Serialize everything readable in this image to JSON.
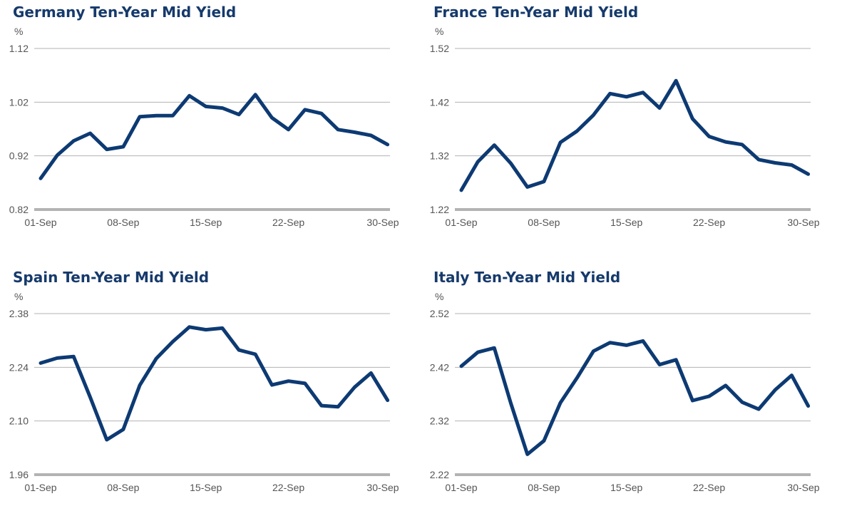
{
  "chart_data": [
    {
      "type": "line",
      "title": "Germany Ten-Year Mid Yield",
      "unit": "%",
      "ylim": [
        0.82,
        1.12
      ],
      "yticks": [
        "1.12",
        "1.02",
        "0.92",
        "0.82"
      ],
      "xlim": [
        1,
        30
      ],
      "xticks": [
        {
          "label": "01-Sep",
          "day": 1
        },
        {
          "label": "08-Sep",
          "day": 8
        },
        {
          "label": "15-Sep",
          "day": 15
        },
        {
          "label": "22-Sep",
          "day": 22
        },
        {
          "label": "30-Sep",
          "day": 30
        }
      ],
      "grid": true,
      "colors": {
        "line": "#0d3a73",
        "grid": "#b3b3b3",
        "axis": "#b3b3b3"
      },
      "series": [
        {
          "x": [
            1,
            2.4,
            3.8,
            5.2,
            6.6,
            8,
            9.4,
            10.8,
            12.2,
            13.6,
            15,
            16.4,
            17.8,
            19.2,
            20.6,
            22,
            23.4,
            24.8,
            26.2,
            27.6,
            29,
            30.4
          ],
          "values": [
            0.878,
            0.921,
            0.948,
            0.962,
            0.932,
            0.937,
            0.993,
            0.995,
            0.995,
            1.032,
            1.012,
            1.009,
            0.997,
            1.034,
            0.991,
            0.969,
            1.006,
            0.999,
            0.969,
            0.964,
            0.958,
            0.941
          ]
        }
      ]
    },
    {
      "type": "line",
      "title": "France Ten-Year Mid Yield",
      "unit": "%",
      "ylim": [
        1.22,
        1.52
      ],
      "yticks": [
        "1.52",
        "1.42",
        "1.32",
        "1.22"
      ],
      "xlim": [
        1,
        30
      ],
      "xticks": [
        {
          "label": "01-Sep",
          "day": 1
        },
        {
          "label": "08-Sep",
          "day": 8
        },
        {
          "label": "15-Sep",
          "day": 15
        },
        {
          "label": "22-Sep",
          "day": 22
        },
        {
          "label": "30-Sep",
          "day": 30
        }
      ],
      "grid": true,
      "colors": {
        "line": "#0d3a73",
        "grid": "#b3b3b3",
        "axis": "#b3b3b3"
      },
      "series": [
        {
          "x": [
            1,
            2.4,
            3.8,
            5.2,
            6.6,
            8,
            9.4,
            10.8,
            12.2,
            13.6,
            15,
            16.4,
            17.8,
            19.2,
            20.6,
            22,
            23.4,
            24.8,
            26.2,
            27.6,
            29,
            30.4
          ],
          "values": [
            1.256,
            1.309,
            1.34,
            1.306,
            1.262,
            1.272,
            1.345,
            1.366,
            1.396,
            1.436,
            1.43,
            1.438,
            1.409,
            1.46,
            1.389,
            1.356,
            1.346,
            1.341,
            1.313,
            1.307,
            1.303,
            1.286
          ]
        }
      ]
    },
    {
      "type": "line",
      "title": "Spain Ten-Year Mid Yield",
      "unit": "%",
      "ylim": [
        1.96,
        2.38
      ],
      "yticks": [
        "2.38",
        "2.24",
        "2.10",
        "1.96"
      ],
      "xlim": [
        1,
        30
      ],
      "xticks": [
        {
          "label": "01-Sep",
          "day": 1
        },
        {
          "label": "08-Sep",
          "day": 8
        },
        {
          "label": "15-Sep",
          "day": 15
        },
        {
          "label": "22-Sep",
          "day": 22
        },
        {
          "label": "30-Sep",
          "day": 30
        }
      ],
      "grid": true,
      "colors": {
        "line": "#0d3a73",
        "grid": "#b3b3b3",
        "axis": "#b3b3b3"
      },
      "series": [
        {
          "x": [
            1,
            2.4,
            3.8,
            5.2,
            6.6,
            8,
            9.4,
            10.8,
            12.2,
            13.6,
            15,
            16.4,
            17.8,
            19.2,
            20.6,
            22,
            23.4,
            24.8,
            26.2,
            27.6,
            29,
            30.4
          ],
          "values": [
            2.251,
            2.264,
            2.268,
            2.162,
            2.051,
            2.078,
            2.193,
            2.263,
            2.307,
            2.345,
            2.338,
            2.342,
            2.285,
            2.274,
            2.194,
            2.204,
            2.198,
            2.14,
            2.137,
            2.188,
            2.225,
            2.154
          ]
        }
      ]
    },
    {
      "type": "line",
      "title": "Italy Ten-Year Mid Yield",
      "unit": "%",
      "ylim": [
        2.22,
        2.52
      ],
      "yticks": [
        "2.52",
        "2.42",
        "2.32",
        "2.22"
      ],
      "xlim": [
        1,
        30
      ],
      "xticks": [
        {
          "label": "01-Sep",
          "day": 1
        },
        {
          "label": "08-Sep",
          "day": 8
        },
        {
          "label": "15-Sep",
          "day": 15
        },
        {
          "label": "22-Sep",
          "day": 22
        },
        {
          "label": "30-Sep",
          "day": 30
        }
      ],
      "grid": true,
      "colors": {
        "line": "#0d3a73",
        "grid": "#b3b3b3",
        "axis": "#b3b3b3"
      },
      "series": [
        {
          "x": [
            1,
            2.4,
            3.8,
            5.2,
            6.6,
            8,
            9.4,
            10.8,
            12.2,
            13.6,
            15,
            16.4,
            17.8,
            19.2,
            20.6,
            22,
            23.4,
            24.8,
            26.2,
            27.6,
            29,
            30.4
          ],
          "values": [
            2.422,
            2.448,
            2.456,
            2.353,
            2.258,
            2.283,
            2.354,
            2.4,
            2.45,
            2.466,
            2.461,
            2.469,
            2.425,
            2.434,
            2.358,
            2.366,
            2.386,
            2.355,
            2.342,
            2.378,
            2.405,
            2.348
          ]
        }
      ]
    }
  ]
}
